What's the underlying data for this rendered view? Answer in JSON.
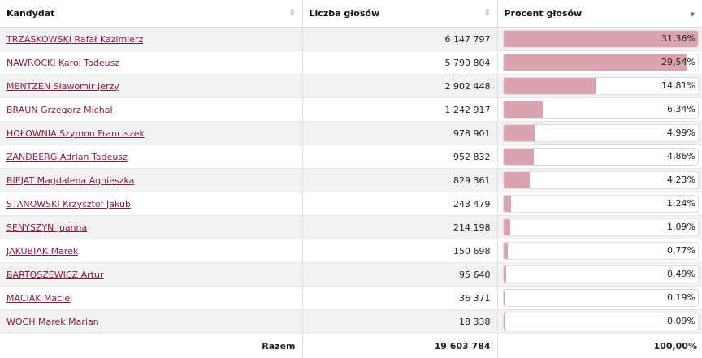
{
  "headers": {
    "candidate": "Kandydat",
    "votes": "Liczba głosów",
    "percent": "Procent głosów"
  },
  "rows": [
    {
      "name": "TRZASKOWSKI Rafał Kazimierz",
      "votes": "6 147 797",
      "percent": "31,36%",
      "share": 0.3136
    },
    {
      "name": "NAWROCKI Karol Tadeusz",
      "votes": "5 790 804",
      "percent": "29,54%",
      "share": 0.2954
    },
    {
      "name": "MENTZEN Sławomir Jerzy",
      "votes": "2 902 448",
      "percent": "14,81%",
      "share": 0.1481
    },
    {
      "name": "BRAUN Grzegorz Michał",
      "votes": "1 242 917",
      "percent": "6,34%",
      "share": 0.0634
    },
    {
      "name": "HOŁOWNIA Szymon Franciszek",
      "votes": "978 901",
      "percent": "4,99%",
      "share": 0.0499
    },
    {
      "name": "ZANDBERG Adrian Tadeusz",
      "votes": "952 832",
      "percent": "4,86%",
      "share": 0.0486
    },
    {
      "name": "BIEJAT Magdalena Agnieszka",
      "votes": "829 361",
      "percent": "4,23%",
      "share": 0.0423
    },
    {
      "name": "STANOWSKI Krzysztof Jakub",
      "votes": "243 479",
      "percent": "1,24%",
      "share": 0.0124
    },
    {
      "name": "SENYSZYN Joanna",
      "votes": "214 198",
      "percent": "1,09%",
      "share": 0.0109
    },
    {
      "name": "JAKUBIAK Marek",
      "votes": "150 698",
      "percent": "0,77%",
      "share": 0.0077
    },
    {
      "name": "BARTOSZEWICZ Artur",
      "votes": "95 640",
      "percent": "0,49%",
      "share": 0.0049
    },
    {
      "name": "MACIAK Maciej",
      "votes": "36 371",
      "percent": "0,19%",
      "share": 0.0019
    },
    {
      "name": "WOCH Marek Marian",
      "votes": "18 338",
      "percent": "0,09%",
      "share": 0.0009
    }
  ],
  "footer": {
    "label": "Razem",
    "total_votes": "19 603 784",
    "total_percent": "100,00%"
  },
  "colors": {
    "link": "#8b1c3c",
    "bar_fill": "#dba3b0"
  },
  "icons": {
    "sort": "sort-arrows-icon",
    "sort_desc": "sort-desc-icon"
  },
  "sort": {
    "column": "percent",
    "direction": "desc"
  }
}
